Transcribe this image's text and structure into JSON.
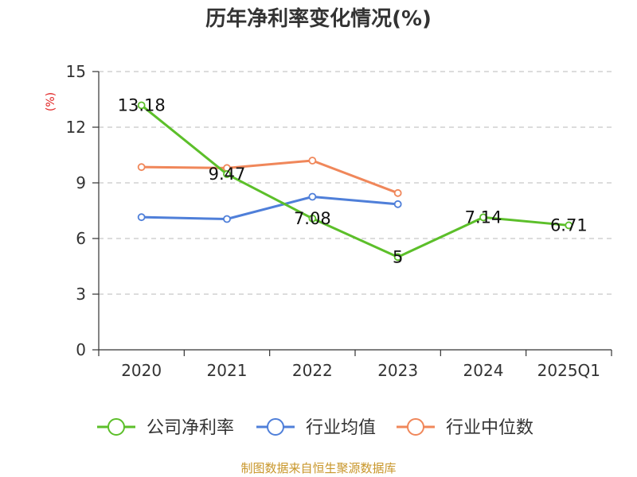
{
  "chart_data": {
    "type": "line",
    "title": "历年净利率变化情况(%)",
    "ylabel": "(%)",
    "xlabel": "",
    "categories": [
      "2020",
      "2021",
      "2022",
      "2023",
      "2024",
      "2025Q1"
    ],
    "ylim": [
      0,
      15
    ],
    "yticks": [
      0,
      3,
      6,
      9,
      12,
      15
    ],
    "grid": true,
    "legend_position": "bottom",
    "series": [
      {
        "name": "公司净利率",
        "values": [
          13.18,
          9.47,
          7.08,
          5,
          7.14,
          6.71
        ],
        "color": "#5cbf2a",
        "show_labels": true
      },
      {
        "name": "行业均值",
        "values": [
          7.15,
          7.05,
          8.25,
          7.85,
          null,
          null
        ],
        "color": "#4f7fd9",
        "show_labels": false
      },
      {
        "name": "行业中位数",
        "values": [
          9.85,
          9.8,
          10.2,
          8.45,
          null,
          null
        ],
        "color": "#f0875a",
        "show_labels": false
      }
    ]
  },
  "footer": {
    "source": "制图数据来自恒生聚源数据库"
  }
}
